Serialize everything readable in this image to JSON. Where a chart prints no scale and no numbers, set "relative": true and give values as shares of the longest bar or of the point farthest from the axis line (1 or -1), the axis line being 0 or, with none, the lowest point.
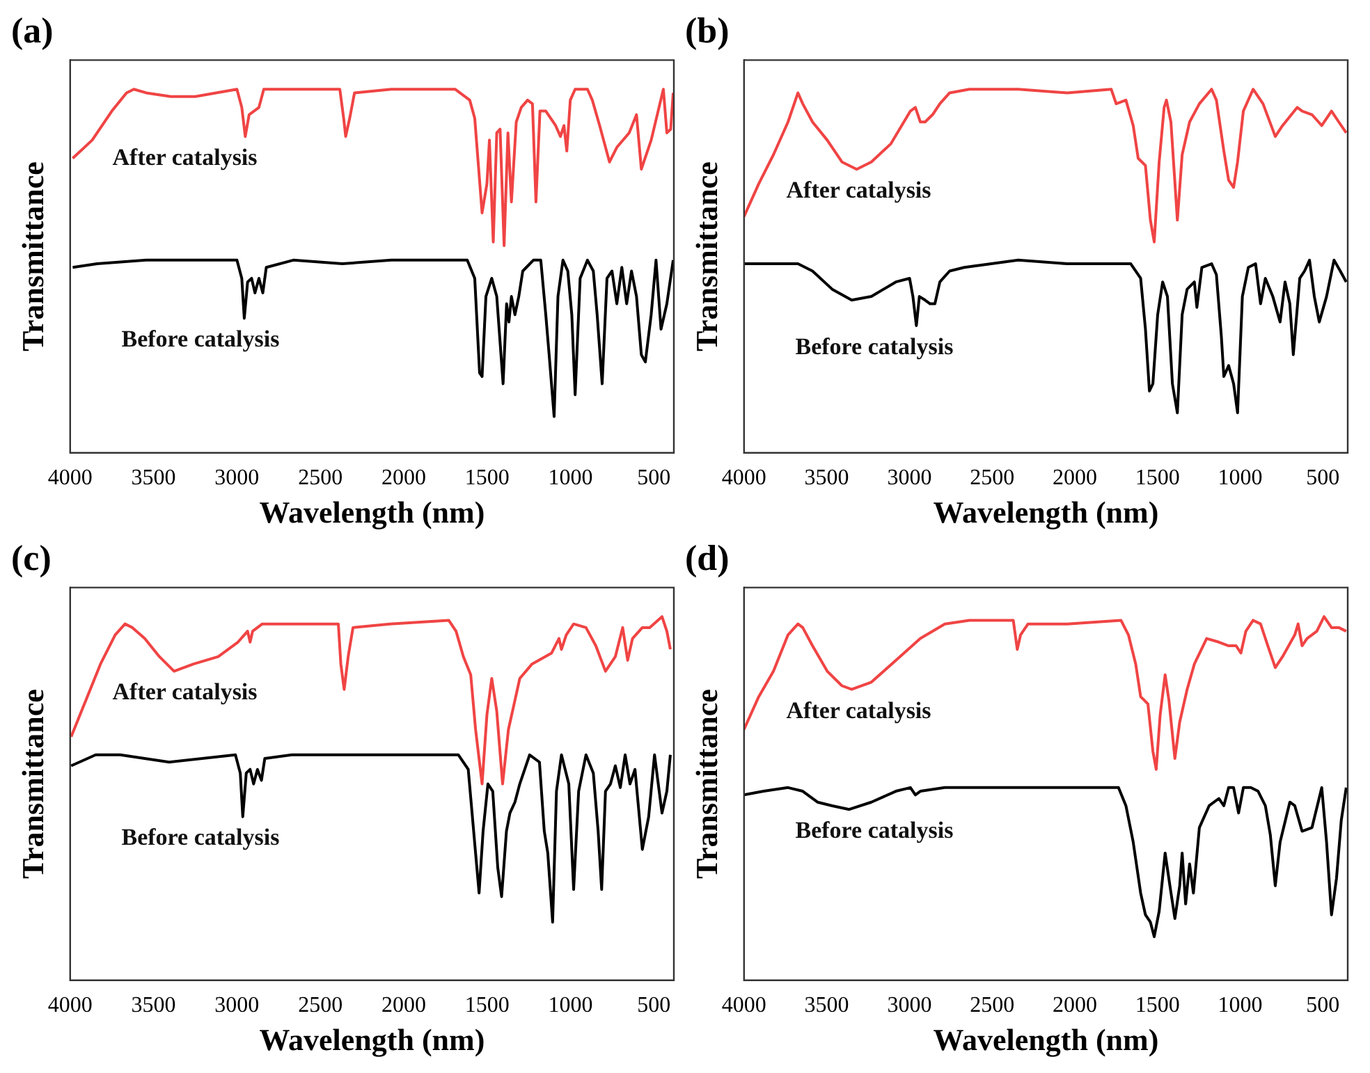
{
  "chart_data": [
    {
      "type": "line",
      "title": "(a)",
      "xlabel": "Wavelength (nm)",
      "ylabel": "Transmittance",
      "relative": true,
      "xlim": [
        4000,
        380
      ],
      "xticks": [
        4000,
        3500,
        3000,
        2500,
        2000,
        1500,
        1000,
        500
      ],
      "series": [
        {
          "name": "After catalysis",
          "color": "#f04444",
          "x": [
            3985,
            3868,
            3750,
            3662,
            3618,
            3544,
            3397,
            3250,
            3000,
            2971,
            2950,
            2927,
            2868,
            2839,
            2662,
            2383,
            2360,
            2348,
            2324,
            2295,
            2074,
            1692,
            1604,
            1574,
            1530,
            1501,
            1486,
            1463,
            1442,
            1422,
            1398,
            1375,
            1354,
            1325,
            1295,
            1257,
            1228,
            1207,
            1183,
            1148,
            1089,
            1060,
            1039,
            1022,
            1001,
            972,
            898,
            869,
            825,
            766,
            722,
            648,
            604,
            575,
            516,
            443,
            422,
            399,
            384
          ],
          "values": [
            0.81,
            0.86,
            0.94,
            0.99,
            1.0,
            0.99,
            0.98,
            0.98,
            1.0,
            0.95,
            0.87,
            0.93,
            0.95,
            1.0,
            1.0,
            1.0,
            0.92,
            0.87,
            0.92,
            0.99,
            1.0,
            1.0,
            0.97,
            0.92,
            0.66,
            0.74,
            0.86,
            0.58,
            0.88,
            0.89,
            0.57,
            0.88,
            0.69,
            0.91,
            0.95,
            0.97,
            0.96,
            0.69,
            0.94,
            0.94,
            0.9,
            0.87,
            0.9,
            0.83,
            0.97,
            1.0,
            1.0,
            0.97,
            0.9,
            0.8,
            0.84,
            0.88,
            0.93,
            0.78,
            0.86,
            1.0,
            0.88,
            0.89,
            0.99
          ]
        },
        {
          "name": "Before catalysis",
          "color": "#000000",
          "x": [
            3985,
            3838,
            3544,
            3000,
            2971,
            2956,
            2936,
            2912,
            2892,
            2868,
            2845,
            2824,
            2662,
            2368,
            2074,
            1619,
            1574,
            1545,
            1530,
            1507,
            1472,
            1442,
            1404,
            1383,
            1369,
            1354,
            1333,
            1310,
            1286,
            1222,
            1178,
            1148,
            1128,
            1098,
            1075,
            1045,
            1016,
            992,
            972,
            942,
            898,
            863,
            840,
            810,
            781,
            751,
            722,
            692,
            663,
            634,
            604,
            575,
            551,
            516,
            487,
            457,
            422,
            384
          ],
          "values": [
            0.51,
            0.52,
            0.53,
            0.53,
            0.48,
            0.37,
            0.47,
            0.48,
            0.44,
            0.48,
            0.44,
            0.51,
            0.53,
            0.52,
            0.53,
            0.53,
            0.48,
            0.22,
            0.21,
            0.43,
            0.48,
            0.43,
            0.19,
            0.41,
            0.36,
            0.43,
            0.38,
            0.43,
            0.5,
            0.53,
            0.53,
            0.38,
            0.27,
            0.1,
            0.43,
            0.53,
            0.5,
            0.38,
            0.16,
            0.48,
            0.53,
            0.5,
            0.38,
            0.19,
            0.48,
            0.5,
            0.41,
            0.51,
            0.41,
            0.5,
            0.43,
            0.27,
            0.25,
            0.38,
            0.53,
            0.34,
            0.41,
            0.53
          ]
        }
      ]
    },
    {
      "type": "line",
      "title": "(b)",
      "xlabel": "Wavelength (nm)",
      "ylabel": "Transmittance",
      "relative": true,
      "xlim": [
        4000,
        350
      ],
      "xticks": [
        4000,
        3500,
        3000,
        2500,
        2000,
        1500,
        1000,
        500
      ],
      "series": [
        {
          "name": "After catalysis",
          "color": "#f04444",
          "x": [
            4000,
            3911,
            3822,
            3734,
            3674,
            3645,
            3586,
            3497,
            3408,
            3319,
            3230,
            3112,
            2994,
            2964,
            2934,
            2905,
            2860,
            2816,
            2757,
            2638,
            2342,
            2046,
            1780,
            1750,
            1691,
            1647,
            1617,
            1573,
            1543,
            1520,
            1490,
            1460,
            1446,
            1419,
            1380,
            1351,
            1306,
            1247,
            1173,
            1144,
            1099,
            1070,
            1040,
            1016,
            981,
            922,
            862,
            788,
            744,
            655,
            626,
            566,
            507,
            448,
            404,
            359
          ],
          "values": [
            0.65,
            0.74,
            0.82,
            0.91,
            0.99,
            0.96,
            0.91,
            0.86,
            0.8,
            0.78,
            0.8,
            0.85,
            0.94,
            0.95,
            0.91,
            0.91,
            0.93,
            0.96,
            0.99,
            1.0,
            1.0,
            0.99,
            1.0,
            0.96,
            0.97,
            0.9,
            0.81,
            0.79,
            0.64,
            0.58,
            0.8,
            0.95,
            0.97,
            0.91,
            0.64,
            0.82,
            0.91,
            0.96,
            1.0,
            0.97,
            0.83,
            0.75,
            0.73,
            0.8,
            0.94,
            1.0,
            0.96,
            0.87,
            0.9,
            0.95,
            0.94,
            0.93,
            0.9,
            0.94,
            0.91,
            0.88
          ]
        },
        {
          "name": "Before catalysis",
          "color": "#000000",
          "x": [
            4000,
            3674,
            3586,
            3467,
            3349,
            3230,
            3082,
            2999,
            2979,
            2958,
            2940,
            2905,
            2875,
            2846,
            2816,
            2757,
            2668,
            2342,
            2046,
            1662,
            1602,
            1573,
            1549,
            1528,
            1499,
            1469,
            1440,
            1410,
            1380,
            1351,
            1321,
            1277,
            1262,
            1232,
            1173,
            1144,
            1114,
            1099,
            1070,
            1040,
            1016,
            987,
            951,
            907,
            877,
            848,
            803,
            759,
            729,
            700,
            679,
            640,
            611,
            581,
            552,
            522,
            478,
            433,
            395,
            359
          ],
          "values": [
            0.52,
            0.52,
            0.5,
            0.45,
            0.42,
            0.43,
            0.47,
            0.48,
            0.43,
            0.35,
            0.43,
            0.42,
            0.41,
            0.41,
            0.47,
            0.5,
            0.51,
            0.53,
            0.52,
            0.52,
            0.48,
            0.34,
            0.17,
            0.19,
            0.38,
            0.47,
            0.43,
            0.19,
            0.11,
            0.38,
            0.45,
            0.47,
            0.4,
            0.51,
            0.52,
            0.49,
            0.32,
            0.21,
            0.24,
            0.19,
            0.11,
            0.43,
            0.51,
            0.52,
            0.41,
            0.48,
            0.43,
            0.36,
            0.47,
            0.41,
            0.27,
            0.48,
            0.5,
            0.53,
            0.43,
            0.36,
            0.43,
            0.53,
            0.5,
            0.47
          ]
        }
      ]
    },
    {
      "type": "line",
      "title": "(c)",
      "xlabel": "Wavelength (nm)",
      "ylabel": "Transmittance",
      "relative": true,
      "xlim": [
        4000,
        380
      ],
      "xticks": [
        4000,
        3500,
        3000,
        2500,
        2000,
        1500,
        1000,
        500
      ],
      "series": [
        {
          "name": "After catalysis",
          "color": "#f04444",
          "x": [
            3994,
            3906,
            3818,
            3730,
            3671,
            3627,
            3553,
            3465,
            3377,
            3259,
            3112,
            2994,
            2936,
            2921,
            2906,
            2848,
            2671,
            2392,
            2377,
            2357,
            2333,
            2304,
            2083,
            1730,
            1686,
            1642,
            1598,
            1569,
            1530,
            1501,
            1472,
            1442,
            1407,
            1372,
            1333,
            1304,
            1230,
            1113,
            1069,
            1054,
            1025,
            981,
            907,
            848,
            790,
            731,
            687,
            657,
            628,
            569,
            525,
            451,
            422,
            401
          ],
          "values": [
            0.67,
            0.77,
            0.87,
            0.95,
            0.98,
            0.97,
            0.94,
            0.89,
            0.85,
            0.87,
            0.89,
            0.93,
            0.96,
            0.93,
            0.96,
            0.98,
            0.98,
            0.98,
            0.87,
            0.8,
            0.89,
            0.97,
            0.98,
            0.99,
            0.96,
            0.89,
            0.84,
            0.69,
            0.54,
            0.73,
            0.83,
            0.74,
            0.54,
            0.69,
            0.77,
            0.83,
            0.87,
            0.9,
            0.94,
            0.91,
            0.95,
            0.98,
            0.97,
            0.92,
            0.85,
            0.89,
            0.97,
            0.88,
            0.94,
            0.97,
            0.97,
            1.0,
            0.96,
            0.91
          ]
        },
        {
          "name": "Before catalysis",
          "color": "#000000",
          "x": [
            3994,
            3847,
            3700,
            3406,
            3009,
            2980,
            2965,
            2944,
            2921,
            2900,
            2877,
            2853,
            2833,
            2671,
            2377,
            2083,
            1672,
            1613,
            1569,
            1548,
            1524,
            1495,
            1466,
            1436,
            1413,
            1384,
            1363,
            1333,
            1304,
            1245,
            1186,
            1157,
            1136,
            1107,
            1084,
            1054,
            1010,
            981,
            951,
            907,
            863,
            834,
            813,
            790,
            760,
            731,
            701,
            672,
            643,
            613,
            569,
            531,
            496,
            451,
            422,
            401
          ],
          "values": [
            0.59,
            0.62,
            0.62,
            0.6,
            0.62,
            0.57,
            0.45,
            0.57,
            0.58,
            0.54,
            0.58,
            0.55,
            0.61,
            0.62,
            0.62,
            0.62,
            0.62,
            0.58,
            0.35,
            0.24,
            0.41,
            0.54,
            0.52,
            0.31,
            0.23,
            0.41,
            0.46,
            0.49,
            0.54,
            0.62,
            0.6,
            0.41,
            0.35,
            0.16,
            0.52,
            0.62,
            0.54,
            0.25,
            0.52,
            0.62,
            0.57,
            0.41,
            0.25,
            0.52,
            0.54,
            0.59,
            0.53,
            0.62,
            0.54,
            0.58,
            0.36,
            0.45,
            0.62,
            0.46,
            0.52,
            0.62
          ]
        }
      ]
    },
    {
      "type": "line",
      "title": "(d)",
      "xlabel": "Wavelength (nm)",
      "ylabel": "Transmittance",
      "relative": true,
      "xlim": [
        4000,
        350
      ],
      "xticks": [
        4000,
        3500,
        3000,
        2500,
        2000,
        1500,
        1000,
        500
      ],
      "series": [
        {
          "name": "After catalysis",
          "color": "#f04444",
          "x": [
            4000,
            3911,
            3822,
            3734,
            3674,
            3645,
            3586,
            3497,
            3408,
            3349,
            3230,
            3082,
            2934,
            2786,
            2638,
            2372,
            2348,
            2328,
            2283,
            2046,
            1721,
            1676,
            1632,
            1602,
            1558,
            1528,
            1508,
            1484,
            1454,
            1431,
            1395,
            1366,
            1321,
            1277,
            1203,
            1129,
            1070,
            1025,
            996,
            966,
            922,
            877,
            833,
            788,
            744,
            670,
            650,
            626,
            596,
            537,
            493,
            448,
            404,
            359
          ],
          "values": [
            0.69,
            0.78,
            0.85,
            0.95,
            0.98,
            0.97,
            0.92,
            0.85,
            0.81,
            0.8,
            0.82,
            0.88,
            0.94,
            0.98,
            0.99,
            0.99,
            0.91,
            0.95,
            0.98,
            0.98,
            0.99,
            0.95,
            0.87,
            0.78,
            0.76,
            0.63,
            0.58,
            0.73,
            0.84,
            0.77,
            0.61,
            0.71,
            0.8,
            0.87,
            0.94,
            0.93,
            0.92,
            0.92,
            0.9,
            0.96,
            0.99,
            0.98,
            0.92,
            0.86,
            0.89,
            0.95,
            0.98,
            0.92,
            0.94,
            0.96,
            1.0,
            0.97,
            0.97,
            0.96
          ]
        },
        {
          "name": "Before catalysis",
          "color": "#000000",
          "x": [
            4000,
            3882,
            3734,
            3645,
            3556,
            3467,
            3364,
            3230,
            3082,
            2994,
            2964,
            2934,
            2786,
            2342,
            2046,
            1736,
            1691,
            1647,
            1602,
            1573,
            1543,
            1520,
            1490,
            1454,
            1425,
            1395,
            1366,
            1351,
            1330,
            1306,
            1283,
            1247,
            1188,
            1129,
            1099,
            1070,
            1040,
            1010,
            981,
            936,
            892,
            848,
            818,
            788,
            759,
            700,
            670,
            626,
            566,
            507,
            478,
            448,
            418,
            389,
            359
          ],
          "values": [
            0.51,
            0.52,
            0.53,
            0.52,
            0.49,
            0.48,
            0.47,
            0.49,
            0.52,
            0.53,
            0.51,
            0.52,
            0.53,
            0.53,
            0.53,
            0.53,
            0.48,
            0.38,
            0.24,
            0.18,
            0.16,
            0.12,
            0.19,
            0.35,
            0.26,
            0.17,
            0.26,
            0.35,
            0.21,
            0.32,
            0.24,
            0.42,
            0.48,
            0.5,
            0.48,
            0.53,
            0.53,
            0.46,
            0.53,
            0.53,
            0.52,
            0.48,
            0.4,
            0.26,
            0.38,
            0.49,
            0.48,
            0.41,
            0.42,
            0.53,
            0.38,
            0.18,
            0.28,
            0.44,
            0.53
          ]
        }
      ]
    }
  ]
}
